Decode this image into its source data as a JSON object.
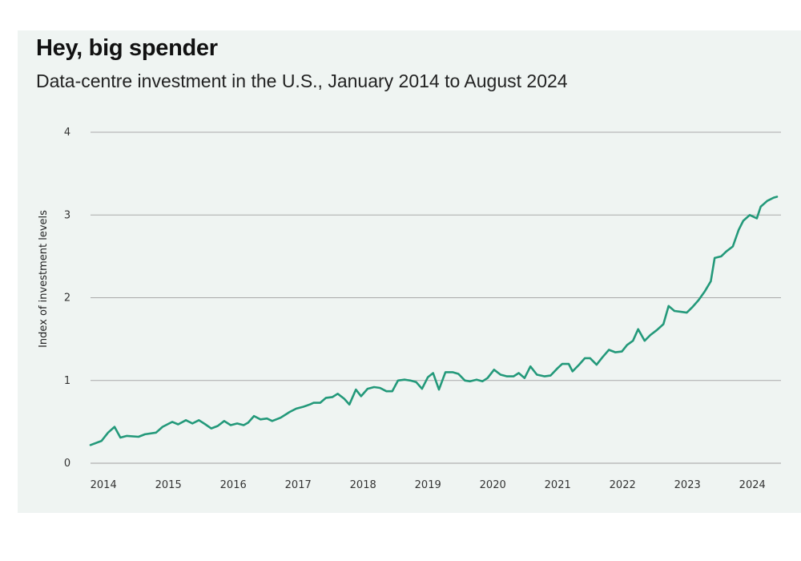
{
  "chart_data": {
    "type": "line",
    "title": "Hey, big spender",
    "subtitle": "Data-centre investment in the U.S., January 2014 to August 2024",
    "xlabel": "",
    "ylabel": "Index of investment levels",
    "xlim": [
      2014,
      2024.58
    ],
    "ylim": [
      0,
      4
    ],
    "x_ticks": [
      "2014",
      "2015",
      "2016",
      "2017",
      "2018",
      "2019",
      "2020",
      "2021",
      "2022",
      "2023",
      "2024"
    ],
    "y_ticks": [
      "0",
      "1",
      "2",
      "3",
      "4"
    ],
    "grid": "horizontal",
    "line_color": "#23997a",
    "series": [
      {
        "points": [
          [
            2014.0,
            0.22
          ],
          [
            2014.17,
            0.27
          ],
          [
            2014.27,
            0.37
          ],
          [
            2014.37,
            0.44
          ],
          [
            2014.46,
            0.31
          ],
          [
            2014.56,
            0.33
          ],
          [
            2014.74,
            0.32
          ],
          [
            2014.84,
            0.35
          ],
          [
            2015.01,
            0.37
          ],
          [
            2015.11,
            0.44
          ],
          [
            2015.26,
            0.5
          ],
          [
            2015.35,
            0.47
          ],
          [
            2015.47,
            0.52
          ],
          [
            2015.57,
            0.48
          ],
          [
            2015.67,
            0.52
          ],
          [
            2015.77,
            0.47
          ],
          [
            2015.86,
            0.42
          ],
          [
            2015.96,
            0.45
          ],
          [
            2016.06,
            0.51
          ],
          [
            2016.16,
            0.46
          ],
          [
            2016.26,
            0.48
          ],
          [
            2016.36,
            0.46
          ],
          [
            2016.43,
            0.49
          ],
          [
            2016.52,
            0.57
          ],
          [
            2016.62,
            0.53
          ],
          [
            2016.72,
            0.54
          ],
          [
            2016.8,
            0.51
          ],
          [
            2016.93,
            0.55
          ],
          [
            2017.01,
            0.59
          ],
          [
            2017.07,
            0.62
          ],
          [
            2017.17,
            0.66
          ],
          [
            2017.27,
            0.68
          ],
          [
            2017.38,
            0.71
          ],
          [
            2017.44,
            0.73
          ],
          [
            2017.54,
            0.73
          ],
          [
            2017.63,
            0.79
          ],
          [
            2017.73,
            0.8
          ],
          [
            2017.81,
            0.84
          ],
          [
            2017.91,
            0.78
          ],
          [
            2017.99,
            0.71
          ],
          [
            2018.09,
            0.89
          ],
          [
            2018.17,
            0.81
          ],
          [
            2018.27,
            0.9
          ],
          [
            2018.37,
            0.92
          ],
          [
            2018.46,
            0.91
          ],
          [
            2018.56,
            0.87
          ],
          [
            2018.65,
            0.87
          ],
          [
            2018.74,
            1.0
          ],
          [
            2018.84,
            1.01
          ],
          [
            2018.93,
            1.0
          ],
          [
            2019.02,
            0.98
          ],
          [
            2019.11,
            0.9
          ],
          [
            2019.2,
            1.04
          ],
          [
            2019.28,
            1.09
          ],
          [
            2019.37,
            0.89
          ],
          [
            2019.47,
            1.1
          ],
          [
            2019.58,
            1.1
          ],
          [
            2019.67,
            1.08
          ],
          [
            2019.77,
            1.0
          ],
          [
            2019.85,
            0.99
          ],
          [
            2019.95,
            1.01
          ],
          [
            2020.04,
            0.99
          ],
          [
            2020.12,
            1.03
          ],
          [
            2020.22,
            1.13
          ],
          [
            2020.32,
            1.07
          ],
          [
            2020.42,
            1.05
          ],
          [
            2020.52,
            1.05
          ],
          [
            2020.6,
            1.09
          ],
          [
            2020.69,
            1.03
          ],
          [
            2020.78,
            1.17
          ],
          [
            2020.88,
            1.07
          ],
          [
            2021.0,
            1.05
          ],
          [
            2021.09,
            1.06
          ],
          [
            2021.2,
            1.15
          ],
          [
            2021.27,
            1.2
          ],
          [
            2021.37,
            1.2
          ],
          [
            2021.43,
            1.11
          ],
          [
            2021.53,
            1.19
          ],
          [
            2021.62,
            1.27
          ],
          [
            2021.7,
            1.27
          ],
          [
            2021.8,
            1.19
          ],
          [
            2021.89,
            1.28
          ],
          [
            2021.99,
            1.37
          ],
          [
            2022.09,
            1.34
          ],
          [
            2022.19,
            1.35
          ],
          [
            2022.27,
            1.43
          ],
          [
            2022.36,
            1.48
          ],
          [
            2022.44,
            1.62
          ],
          [
            2022.54,
            1.48
          ],
          [
            2022.63,
            1.55
          ],
          [
            2022.73,
            1.61
          ],
          [
            2022.83,
            1.68
          ],
          [
            2022.91,
            1.9
          ],
          [
            2023.0,
            1.84
          ],
          [
            2023.1,
            1.83
          ],
          [
            2023.19,
            1.82
          ],
          [
            2023.28,
            1.89
          ],
          [
            2023.37,
            1.97
          ],
          [
            2023.47,
            2.08
          ],
          [
            2023.56,
            2.2
          ],
          [
            2023.62,
            2.48
          ],
          [
            2023.72,
            2.5
          ],
          [
            2023.8,
            2.56
          ],
          [
            2023.9,
            2.62
          ],
          [
            2023.99,
            2.82
          ],
          [
            2024.06,
            2.93
          ],
          [
            2024.16,
            3.0
          ],
          [
            2024.27,
            2.96
          ],
          [
            2024.33,
            3.1
          ],
          [
            2024.43,
            3.17
          ],
          [
            2024.53,
            3.21
          ],
          [
            2024.58,
            3.22
          ]
        ]
      }
    ]
  }
}
